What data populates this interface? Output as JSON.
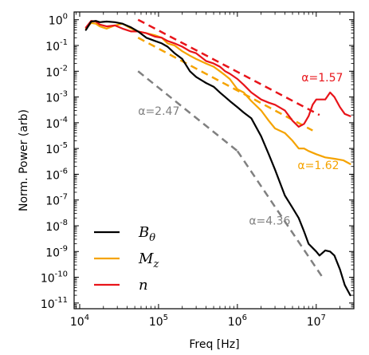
{
  "chart_data": {
    "type": "line",
    "xlabel": "Freq [Hz]",
    "ylabel": "Norm. Power (arb)",
    "xscale": "log",
    "yscale": "log",
    "xlim": [
      8500,
      30000000
    ],
    "ylim": [
      6e-12,
      2
    ],
    "xticks": [
      {
        "value": 10000,
        "base": "10",
        "exp": "4"
      },
      {
        "value": 100000,
        "base": "10",
        "exp": "5"
      },
      {
        "value": 1000000,
        "base": "10",
        "exp": "6"
      },
      {
        "value": 10000000,
        "base": "10",
        "exp": "7"
      }
    ],
    "yticks": [
      {
        "value": 1,
        "label": "10",
        "exp": "0"
      },
      {
        "value": 0.1,
        "label": "10",
        "exp": "-1"
      },
      {
        "value": 0.01,
        "label": "10",
        "exp": "-2"
      },
      {
        "value": 0.001,
        "label": "10",
        "exp": "-3"
      },
      {
        "value": 0.0001,
        "label": "10",
        "exp": "-4"
      },
      {
        "value": 1e-05,
        "label": "10",
        "exp": "-5"
      },
      {
        "value": 1e-06,
        "label": "10",
        "exp": "-6"
      },
      {
        "value": 1e-07,
        "label": "10",
        "exp": "-7"
      },
      {
        "value": 1e-08,
        "label": "10",
        "exp": "-8"
      },
      {
        "value": 1e-09,
        "label": "10",
        "exp": "-9"
      },
      {
        "value": 1e-10,
        "label": "10",
        "exp": "-10"
      },
      {
        "value": 1e-11,
        "label": "10",
        "exp": "-11"
      }
    ],
    "legend_position": "bottom-left",
    "series": [
      {
        "name": "B_θ",
        "legend_base": "B",
        "legend_sub": "θ",
        "color": "#000000",
        "points": [
          [
            12000,
            0.4
          ],
          [
            14000,
            0.85
          ],
          [
            16000,
            0.9
          ],
          [
            18000,
            0.8
          ],
          [
            22000,
            0.85
          ],
          [
            28000,
            0.8
          ],
          [
            35000,
            0.7
          ],
          [
            45000,
            0.5
          ],
          [
            55000,
            0.35
          ],
          [
            70000,
            0.2
          ],
          [
            90000,
            0.15
          ],
          [
            110000,
            0.12
          ],
          [
            130000,
            0.09
          ],
          [
            160000,
            0.05
          ],
          [
            200000,
            0.03
          ],
          [
            250000,
            0.01
          ],
          [
            300000,
            0.006
          ],
          [
            400000,
            0.0035
          ],
          [
            500000,
            0.0025
          ],
          [
            600000,
            0.0015
          ],
          [
            700000,
            0.001
          ],
          [
            800000,
            0.0007
          ],
          [
            1000000,
            0.0004
          ],
          [
            1200000,
            0.00025
          ],
          [
            1500000,
            0.00015
          ],
          [
            2000000,
            3e-05
          ],
          [
            2500000,
            6e-06
          ],
          [
            3000000,
            1.5e-06
          ],
          [
            4000000,
            1.5e-07
          ],
          [
            5000000,
            5e-08
          ],
          [
            6000000,
            2e-08
          ],
          [
            7000000,
            6e-09
          ],
          [
            8000000,
            2e-09
          ],
          [
            10000000,
            1e-09
          ],
          [
            11000000,
            7e-10
          ],
          [
            13000000,
            1.1e-09
          ],
          [
            15000000,
            1e-09
          ],
          [
            17000000,
            7e-10
          ],
          [
            20000000,
            2e-10
          ],
          [
            23000000,
            5e-11
          ],
          [
            27000000,
            2e-11
          ]
        ]
      },
      {
        "name": "M_z",
        "legend_base": "M",
        "legend_sub": "z",
        "color": "#f5a300",
        "points": [
          [
            12000,
            0.45
          ],
          [
            14000,
            0.75
          ],
          [
            16000,
            0.7
          ],
          [
            18000,
            0.55
          ],
          [
            22000,
            0.45
          ],
          [
            28000,
            0.6
          ],
          [
            35000,
            0.7
          ],
          [
            45000,
            0.45
          ],
          [
            55000,
            0.35
          ],
          [
            70000,
            0.3
          ],
          [
            90000,
            0.25
          ],
          [
            110000,
            0.2
          ],
          [
            130000,
            0.12
          ],
          [
            160000,
            0.1
          ],
          [
            200000,
            0.06
          ],
          [
            250000,
            0.04
          ],
          [
            300000,
            0.03
          ],
          [
            400000,
            0.02
          ],
          [
            500000,
            0.015
          ],
          [
            600000,
            0.01
          ],
          [
            700000,
            0.007
          ],
          [
            800000,
            0.005
          ],
          [
            1000000,
            0.002
          ],
          [
            1200000,
            0.0015
          ],
          [
            1500000,
            0.0007
          ],
          [
            2000000,
            0.0003
          ],
          [
            2500000,
            0.00012
          ],
          [
            3000000,
            6e-05
          ],
          [
            4000000,
            4e-05
          ],
          [
            5000000,
            2e-05
          ],
          [
            6000000,
            1e-05
          ],
          [
            7000000,
            1e-05
          ],
          [
            8000000,
            8e-06
          ],
          [
            10000000,
            6e-06
          ],
          [
            13000000,
            4.5e-06
          ],
          [
            17000000,
            4e-06
          ],
          [
            22000000,
            3.5e-06
          ],
          [
            27000000,
            2.5e-06
          ]
        ]
      },
      {
        "name": "n",
        "legend_base": "n",
        "legend_sub": "",
        "color": "#e8141a",
        "points": [
          [
            12000,
            0.5
          ],
          [
            14000,
            0.9
          ],
          [
            16000,
            0.85
          ],
          [
            18000,
            0.65
          ],
          [
            22000,
            0.55
          ],
          [
            28000,
            0.6
          ],
          [
            35000,
            0.45
          ],
          [
            45000,
            0.35
          ],
          [
            55000,
            0.35
          ],
          [
            70000,
            0.3
          ],
          [
            90000,
            0.22
          ],
          [
            110000,
            0.2
          ],
          [
            130000,
            0.15
          ],
          [
            160000,
            0.12
          ],
          [
            200000,
            0.09
          ],
          [
            250000,
            0.06
          ],
          [
            300000,
            0.05
          ],
          [
            400000,
            0.025
          ],
          [
            500000,
            0.02
          ],
          [
            600000,
            0.015
          ],
          [
            700000,
            0.01
          ],
          [
            800000,
            0.008
          ],
          [
            1000000,
            0.005
          ],
          [
            1200000,
            0.003
          ],
          [
            1500000,
            0.0015
          ],
          [
            2000000,
            0.0008
          ],
          [
            2500000,
            0.0006
          ],
          [
            3000000,
            0.0005
          ],
          [
            4000000,
            0.0003
          ],
          [
            5000000,
            0.00012
          ],
          [
            6000000,
            7e-05
          ],
          [
            7000000,
            9e-05
          ],
          [
            8000000,
            0.00018
          ],
          [
            9000000,
            0.0005
          ],
          [
            10000000,
            0.0008
          ],
          [
            11000000,
            0.0008
          ],
          [
            13000000,
            0.0008
          ],
          [
            15000000,
            0.0015
          ],
          [
            17000000,
            0.001
          ],
          [
            20000000,
            0.0004
          ],
          [
            23000000,
            0.00022
          ],
          [
            27000000,
            0.00018
          ]
        ]
      }
    ],
    "fits": [
      {
        "color": "#e8141a",
        "points": [
          [
            55000,
            1.0
          ],
          [
            11000000,
            0.0002
          ]
        ]
      },
      {
        "color": "#f5a300",
        "points": [
          [
            55000,
            0.2
          ],
          [
            9000000,
            5e-05
          ]
        ]
      },
      {
        "color": "#808080",
        "points": [
          [
            55000,
            0.01
          ],
          [
            1000000,
            8e-06
          ]
        ]
      },
      {
        "color": "#808080",
        "points": [
          [
            1000000,
            8e-06
          ],
          [
            12000000,
            1e-10
          ]
        ]
      }
    ],
    "annotations": [
      {
        "text": "α=1.57",
        "color": "#e8141a",
        "x": 6500000,
        "y": 0.004
      },
      {
        "text": "α=2.47",
        "color": "#808080",
        "x": 55000,
        "y": 0.0002
      },
      {
        "text": "α=1.62",
        "color": "#f5a300",
        "x": 5800000,
        "y": 1.6e-06
      },
      {
        "text": "α=4.36",
        "color": "#808080",
        "x": 1400000,
        "y": 1.1e-08
      }
    ]
  }
}
